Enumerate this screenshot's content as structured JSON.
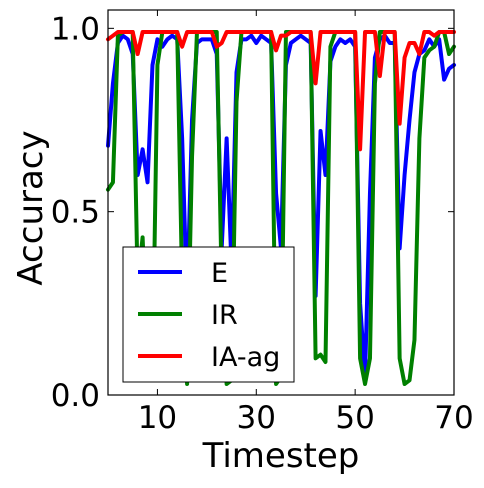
{
  "chart_data": {
    "type": "line",
    "xlabel": "Timestep",
    "ylabel": "Accuracy",
    "xlim": [
      0,
      70
    ],
    "ylim": [
      0.0,
      1.05
    ],
    "xticks": [
      10,
      30,
      50,
      70
    ],
    "xtick_labels": [
      "10",
      "30",
      "50",
      "70"
    ],
    "yticks": [
      0.0,
      0.5,
      1.0
    ],
    "ytick_labels": [
      "0.0",
      "0.5",
      "1.0"
    ],
    "grid": false,
    "legend_position": "lower-left",
    "x": [
      0,
      1,
      2,
      3,
      4,
      5,
      6,
      7,
      8,
      9,
      10,
      11,
      12,
      13,
      14,
      15,
      16,
      17,
      18,
      19,
      20,
      21,
      22,
      23,
      24,
      25,
      26,
      27,
      28,
      29,
      30,
      31,
      32,
      33,
      34,
      35,
      36,
      37,
      38,
      39,
      40,
      41,
      42,
      43,
      44,
      45,
      46,
      47,
      48,
      49,
      50,
      51,
      52,
      53,
      54,
      55,
      56,
      57,
      58,
      59,
      60,
      61,
      62,
      63,
      64,
      65,
      66,
      67,
      68,
      69,
      70
    ],
    "series": [
      {
        "name": "E",
        "color": "#0000ff",
        "values": [
          0.68,
          0.85,
          0.96,
          0.98,
          0.97,
          0.93,
          0.6,
          0.67,
          0.58,
          0.9,
          0.97,
          0.95,
          0.97,
          0.98,
          0.97,
          0.7,
          0.25,
          0.75,
          0.96,
          0.97,
          0.97,
          0.97,
          0.93,
          0.4,
          0.7,
          0.35,
          0.88,
          0.97,
          0.97,
          0.98,
          0.96,
          0.98,
          0.97,
          0.96,
          0.55,
          0.4,
          0.9,
          0.96,
          0.97,
          0.98,
          0.97,
          0.96,
          0.27,
          0.72,
          0.6,
          0.91,
          0.95,
          0.97,
          0.96,
          0.97,
          0.95,
          0.25,
          0.05,
          0.55,
          0.92,
          0.97,
          0.98,
          0.96,
          0.96,
          0.4,
          0.6,
          0.75,
          0.88,
          0.93,
          0.94,
          0.97,
          0.95,
          0.97,
          0.86,
          0.89,
          0.9
        ]
      },
      {
        "name": "IR",
        "color": "#008000",
        "values": [
          0.56,
          0.58,
          0.98,
          0.99,
          0.99,
          0.99,
          0.3,
          0.43,
          0.1,
          0.05,
          0.9,
          0.99,
          0.99,
          0.99,
          0.99,
          0.3,
          0.03,
          0.65,
          0.99,
          0.99,
          0.99,
          0.99,
          0.99,
          0.3,
          0.03,
          0.04,
          0.8,
          0.99,
          0.99,
          0.99,
          0.99,
          0.99,
          0.99,
          0.99,
          0.03,
          0.05,
          0.99,
          0.99,
          0.99,
          0.99,
          0.99,
          0.99,
          0.1,
          0.11,
          0.09,
          0.95,
          0.99,
          0.99,
          0.99,
          0.99,
          0.99,
          0.1,
          0.03,
          0.1,
          0.85,
          0.99,
          0.99,
          0.99,
          0.99,
          0.1,
          0.03,
          0.04,
          0.15,
          0.7,
          0.92,
          0.94,
          0.95,
          0.99,
          0.99,
          0.93,
          0.95
        ]
      },
      {
        "name": "IA-ag",
        "color": "#ff0000",
        "values": [
          0.97,
          0.98,
          0.99,
          0.99,
          0.99,
          0.99,
          0.93,
          0.99,
          0.99,
          0.99,
          0.99,
          0.99,
          0.99,
          0.99,
          0.99,
          0.95,
          0.99,
          0.99,
          0.99,
          0.99,
          0.99,
          0.99,
          0.95,
          0.96,
          0.99,
          0.99,
          0.99,
          0.99,
          0.99,
          0.99,
          0.99,
          0.99,
          0.99,
          0.99,
          0.94,
          0.98,
          0.98,
          0.99,
          0.99,
          0.99,
          0.99,
          0.99,
          0.85,
          0.99,
          0.99,
          0.99,
          0.99,
          0.99,
          0.99,
          0.99,
          0.99,
          0.67,
          0.99,
          0.99,
          0.99,
          0.87,
          0.99,
          0.99,
          0.99,
          0.74,
          0.92,
          0.96,
          0.96,
          0.93,
          0.99,
          0.99,
          0.98,
          0.99,
          0.99,
          0.99,
          0.99
        ]
      }
    ]
  }
}
